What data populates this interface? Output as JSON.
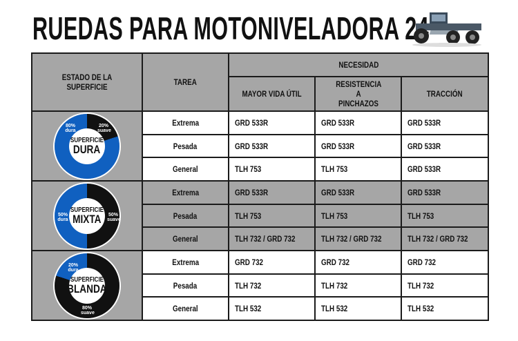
{
  "title": "RUEDAS PARA MOTONIVELADORA 24”",
  "colors": {
    "blue": "#1060c0",
    "black": "#111111",
    "header_gray": "#a6a6a6"
  },
  "header": {
    "estado": "ESTADO DE  LA SUPERFICIE",
    "tarea": "TAREA",
    "necesidad": "NECESIDAD",
    "columns": [
      "MAYOR VIDA ÚTIL",
      "RESISTENCIA A PINCHAZOS",
      "TRACCIÓN"
    ]
  },
  "sections": [
    {
      "chart": {
        "label_top": "SUPERFICIE",
        "label_main": "DURA",
        "dura_pct": 80,
        "suave_pct": 20,
        "dura_label": "80% dura",
        "suave_label": "20% suave"
      },
      "rows": [
        {
          "tarea": "Extrema",
          "values": [
            "GRD 533R",
            "GRD 533R",
            "GRD 533R"
          ]
        },
        {
          "tarea": "Pesada",
          "values": [
            "GRD 533R",
            "GRD 533R",
            "GRD 533R"
          ]
        },
        {
          "tarea": "General",
          "values": [
            "TLH 753",
            "TLH 753",
            "GRD 533R"
          ]
        }
      ]
    },
    {
      "chart": {
        "label_top": "SUPERFICIE",
        "label_main": "MIXTA",
        "dura_pct": 50,
        "suave_pct": 50,
        "dura_label": "50% dura",
        "suave_label": "50% suave"
      },
      "rows": [
        {
          "tarea": "Extrema",
          "values": [
            "GRD 533R",
            "GRD 533R",
            "GRD 533R"
          ]
        },
        {
          "tarea": "Pesada",
          "values": [
            "TLH 753",
            "TLH 753",
            "TLH 753"
          ]
        },
        {
          "tarea": "General",
          "values": [
            "TLH 732 / GRD 732",
            "TLH 732 / GRD 732",
            "TLH 732 / GRD 732"
          ]
        }
      ]
    },
    {
      "chart": {
        "label_top": "SUPERFICIE",
        "label_main": "BLANDA",
        "dura_pct": 20,
        "suave_pct": 80,
        "dura_label": "20% dura",
        "suave_label": "80% suave"
      },
      "rows": [
        {
          "tarea": "Extrema",
          "values": [
            "GRD 732",
            "GRD 732",
            "GRD 732"
          ]
        },
        {
          "tarea": "Pesada",
          "values": [
            "TLH 732",
            "TLH 732",
            "TLH 732"
          ]
        },
        {
          "tarea": "General",
          "values": [
            "TLH 532",
            "TLH 532",
            "TLH 532"
          ]
        }
      ]
    }
  ]
}
